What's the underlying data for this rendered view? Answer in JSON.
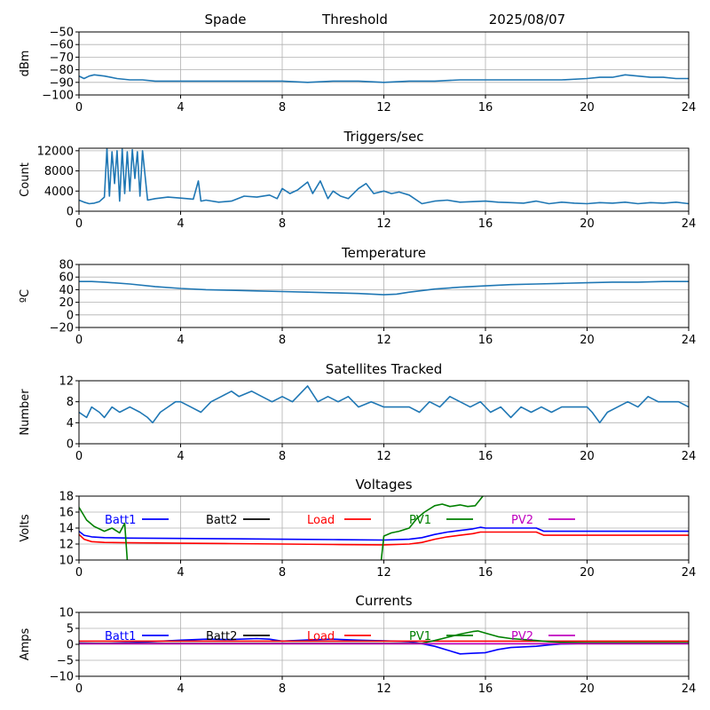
{
  "header": {
    "left": "Spade",
    "center": "Threshold",
    "right": "2025/08/07"
  },
  "chart_data": [
    {
      "id": "threshold",
      "type": "line",
      "title": "",
      "xlabel": "",
      "ylabel": "dBm",
      "xlim": [
        0,
        24
      ],
      "ylim": [
        -100,
        -50
      ],
      "xticks": [
        0,
        4,
        8,
        12,
        16,
        20,
        24
      ],
      "yticks": [
        -100,
        -90,
        -80,
        -70,
        -60,
        -50
      ],
      "grid": true,
      "series": [
        {
          "color": "#1f77b4",
          "x": [
            0,
            0.2,
            0.4,
            0.6,
            1.0,
            1.5,
            2.0,
            2.5,
            3.0,
            4.0,
            5.0,
            6.0,
            7.0,
            8.0,
            9.0,
            10.0,
            11.0,
            12.0,
            13.0,
            14.0,
            15.0,
            16.0,
            17.0,
            18.0,
            19.0,
            20.0,
            20.5,
            21.0,
            21.5,
            22.0,
            22.5,
            23.0,
            23.5,
            24.0
          ],
          "y": [
            -85,
            -87,
            -85,
            -84,
            -85,
            -87,
            -88,
            -88,
            -89,
            -89,
            -89,
            -89,
            -89,
            -89,
            -90,
            -89,
            -89,
            -90,
            -89,
            -89,
            -88,
            -88,
            -88,
            -88,
            -88,
            -87,
            -86,
            -86,
            -84,
            -85,
            -86,
            -86,
            -87,
            -87
          ]
        }
      ]
    },
    {
      "id": "triggers",
      "type": "line",
      "title": "Triggers/sec",
      "xlabel": "",
      "ylabel": "Count",
      "xlim": [
        0,
        24
      ],
      "ylim": [
        0,
        12500
      ],
      "xticks": [
        0,
        4,
        8,
        12,
        16,
        20,
        24
      ],
      "yticks": [
        0,
        4000,
        8000,
        12000
      ],
      "grid": true,
      "series": [
        {
          "color": "#1f77b4",
          "x": [
            0,
            0.2,
            0.4,
            0.6,
            0.8,
            1.0,
            1.1,
            1.2,
            1.3,
            1.4,
            1.5,
            1.6,
            1.7,
            1.8,
            1.9,
            2.0,
            2.1,
            2.2,
            2.3,
            2.4,
            2.5,
            2.7,
            3.0,
            3.5,
            4.0,
            4.5,
            4.7,
            4.8,
            5.0,
            5.5,
            6.0,
            6.5,
            7.0,
            7.5,
            7.8,
            8.0,
            8.3,
            8.6,
            9.0,
            9.2,
            9.5,
            9.8,
            10.0,
            10.3,
            10.6,
            11.0,
            11.3,
            11.6,
            12.0,
            12.3,
            12.6,
            13.0,
            13.5,
            14.0,
            14.5,
            15.0,
            15.5,
            16.0,
            16.5,
            17.0,
            17.5,
            18.0,
            18.5,
            19.0,
            19.5,
            20.0,
            20.5,
            21.0,
            21.5,
            22.0,
            22.5,
            23.0,
            23.5,
            24.0
          ],
          "y": [
            2200,
            1800,
            1500,
            1600,
            1900,
            2800,
            12400,
            3000,
            11800,
            5500,
            12000,
            2000,
            12300,
            3500,
            11800,
            4000,
            12200,
            6500,
            11800,
            3000,
            12000,
            2200,
            2500,
            2800,
            2600,
            2400,
            6000,
            2000,
            2200,
            1800,
            2000,
            3000,
            2800,
            3200,
            2500,
            4500,
            3500,
            4200,
            5800,
            3500,
            6000,
            2500,
            4000,
            3000,
            2500,
            4500,
            5500,
            3500,
            4000,
            3500,
            3800,
            3200,
            1500,
            2000,
            2200,
            1800,
            1900,
            2000,
            1800,
            1700,
            1600,
            2000,
            1500,
            1800,
            1600,
            1500,
            1700,
            1600,
            1800,
            1500,
            1700,
            1600,
            1800,
            1500
          ]
        }
      ]
    },
    {
      "id": "temperature",
      "type": "line",
      "title": "Temperature",
      "xlabel": "",
      "ylabel": "ºC",
      "xlim": [
        0,
        24
      ],
      "ylim": [
        -20,
        80
      ],
      "xticks": [
        0,
        4,
        8,
        12,
        16,
        20,
        24
      ],
      "yticks": [
        -20,
        0,
        20,
        40,
        60,
        80
      ],
      "grid": true,
      "series": [
        {
          "color": "#1f77b4",
          "x": [
            0,
            0.5,
            1,
            2,
            3,
            4,
            5,
            6,
            7,
            8,
            9,
            10,
            11,
            12,
            12.5,
            13,
            14,
            15,
            16,
            17,
            18,
            19,
            20,
            21,
            22,
            23,
            24
          ],
          "y": [
            53,
            53,
            52,
            49,
            45,
            42,
            40,
            39,
            38,
            37,
            36,
            35,
            34,
            32,
            33,
            36,
            41,
            44,
            46,
            48,
            49,
            50,
            51,
            52,
            52,
            53,
            53
          ]
        }
      ]
    },
    {
      "id": "satellites",
      "type": "line",
      "title": "Satellites Tracked",
      "xlabel": "",
      "ylabel": "Number",
      "xlim": [
        0,
        24
      ],
      "ylim": [
        0,
        12
      ],
      "xticks": [
        0,
        4,
        8,
        12,
        16,
        20,
        24
      ],
      "yticks": [
        0,
        4,
        8,
        12
      ],
      "grid": true,
      "series": [
        {
          "color": "#1f77b4",
          "x": [
            0,
            0.3,
            0.5,
            0.8,
            1.0,
            1.3,
            1.6,
            2.0,
            2.4,
            2.7,
            2.9,
            3.2,
            3.5,
            3.8,
            4.0,
            4.4,
            4.8,
            5.2,
            5.6,
            6.0,
            6.3,
            6.8,
            7.2,
            7.6,
            8.0,
            8.4,
            8.8,
            9.0,
            9.4,
            9.8,
            10.2,
            10.6,
            11.0,
            11.5,
            12.0,
            12.5,
            13.0,
            13.4,
            13.8,
            14.2,
            14.6,
            15.0,
            15.4,
            15.8,
            16.2,
            16.6,
            17.0,
            17.4,
            17.8,
            18.2,
            18.6,
            19.0,
            19.5,
            20.0,
            20.2,
            20.5,
            20.8,
            21.2,
            21.6,
            22.0,
            22.4,
            22.8,
            23.2,
            23.6,
            24.0
          ],
          "y": [
            6,
            5,
            7,
            6,
            5,
            7,
            6,
            7,
            6,
            5,
            4,
            6,
            7,
            8,
            8,
            7,
            6,
            8,
            9,
            10,
            9,
            10,
            9,
            8,
            9,
            8,
            10,
            11,
            8,
            9,
            8,
            9,
            7,
            8,
            7,
            7,
            7,
            6,
            8,
            7,
            9,
            8,
            7,
            8,
            6,
            7,
            5,
            7,
            6,
            7,
            6,
            7,
            7,
            7,
            6,
            4,
            6,
            7,
            8,
            7,
            9,
            8,
            8,
            8,
            7
          ]
        }
      ]
    },
    {
      "id": "voltages",
      "type": "line",
      "title": "Voltages",
      "xlabel": "",
      "ylabel": "Volts",
      "xlim": [
        0,
        24
      ],
      "ylim": [
        10,
        18
      ],
      "xticks": [
        0,
        4,
        8,
        12,
        16,
        20,
        24
      ],
      "yticks": [
        10,
        12,
        14,
        16,
        18
      ],
      "grid": true,
      "legend": [
        {
          "label": "Batt1",
          "color": "#0000ff"
        },
        {
          "label": "Batt2",
          "color": "#000000"
        },
        {
          "label": "Load",
          "color": "#ff0000"
        },
        {
          "label": "PV1",
          "color": "#008000"
        },
        {
          "label": "PV2",
          "color": "#bf00bf"
        }
      ],
      "series": [
        {
          "name": "Batt1",
          "color": "#0000ff",
          "x": [
            0,
            0.2,
            0.5,
            1,
            2,
            4,
            6,
            8,
            10,
            12,
            13,
            13.5,
            14,
            14.5,
            15,
            15.5,
            15.8,
            16,
            17,
            18,
            18.3,
            20,
            22,
            24
          ],
          "y": [
            13.6,
            13.1,
            12.9,
            12.8,
            12.75,
            12.7,
            12.65,
            12.6,
            12.55,
            12.5,
            12.6,
            12.8,
            13.2,
            13.5,
            13.7,
            13.9,
            14.1,
            14.0,
            14.0,
            14.0,
            13.6,
            13.6,
            13.6,
            13.6
          ]
        },
        {
          "name": "Load",
          "color": "#ff0000",
          "x": [
            0,
            0.2,
            0.5,
            1,
            2,
            4,
            6,
            8,
            10,
            12,
            13,
            13.5,
            14,
            14.5,
            15,
            15.5,
            15.8,
            16,
            17,
            18,
            18.3,
            20,
            22,
            24
          ],
          "y": [
            13.2,
            12.6,
            12.3,
            12.2,
            12.15,
            12.1,
            12.05,
            12.0,
            11.95,
            11.9,
            12.0,
            12.2,
            12.6,
            12.9,
            13.1,
            13.3,
            13.5,
            13.5,
            13.5,
            13.5,
            13.1,
            13.1,
            13.1,
            13.1
          ]
        },
        {
          "name": "PV1",
          "color": "#008000",
          "x": [
            0,
            0.3,
            0.6,
            1.0,
            1.3,
            1.6,
            1.8,
            1.9
          ],
          "y": [
            16.6,
            15.0,
            14.2,
            13.6,
            14.0,
            13.4,
            14.6,
            10.0
          ]
        },
        {
          "name": "PV1",
          "color": "#008000",
          "x": [
            11.9,
            12.0,
            12.3,
            12.6,
            13.0,
            13.3,
            13.6,
            14.0,
            14.3,
            14.6,
            15.0,
            15.3,
            15.6,
            15.9
          ],
          "y": [
            10.0,
            13.0,
            13.4,
            13.6,
            14.0,
            15.2,
            16.0,
            16.8,
            17.0,
            16.7,
            16.9,
            16.7,
            16.8,
            18.0
          ]
        }
      ]
    },
    {
      "id": "currents",
      "type": "line",
      "title": "Currents",
      "xlabel": "",
      "ylabel": "Amps",
      "xlim": [
        0,
        24
      ],
      "ylim": [
        -10,
        10
      ],
      "xticks": [
        0,
        4,
        8,
        12,
        16,
        20,
        24
      ],
      "yticks": [
        -10,
        -5,
        0,
        5,
        10
      ],
      "grid": true,
      "legend": [
        {
          "label": "Batt1",
          "color": "#0000ff"
        },
        {
          "label": "Batt2",
          "color": "#000000"
        },
        {
          "label": "Load",
          "color": "#ff0000"
        },
        {
          "label": "PV1",
          "color": "#008000"
        },
        {
          "label": "PV2",
          "color": "#bf00bf"
        }
      ],
      "series": [
        {
          "name": "Batt1",
          "color": "#0000ff",
          "x": [
            0,
            1,
            2,
            3,
            4,
            5,
            6,
            7,
            7.5,
            8,
            9,
            10,
            11,
            12,
            13,
            13.5,
            14,
            14.5,
            15,
            15.5,
            16,
            16.5,
            17,
            18,
            18.5,
            19,
            20,
            22,
            24
          ],
          "y": [
            0.4,
            0.3,
            0.5,
            0.9,
            1.3,
            1.6,
            1.5,
            1.8,
            1.6,
            1.0,
            1.4,
            1.6,
            1.3,
            1.1,
            0.8,
            0.2,
            -0.6,
            -1.8,
            -3.0,
            -2.8,
            -2.6,
            -1.6,
            -1.0,
            -0.6,
            -0.2,
            0.1,
            0.3,
            0.4,
            0.4
          ]
        },
        {
          "name": "Load",
          "color": "#ff0000",
          "x": [
            0,
            24
          ],
          "y": [
            1.0,
            1.0
          ]
        },
        {
          "name": "PV1",
          "color": "#008000",
          "x": [
            0,
            13.5,
            14,
            14.5,
            15,
            15.5,
            15.7,
            16,
            16.5,
            17,
            18,
            18.5,
            19,
            20,
            24
          ],
          "y": [
            0.3,
            0.3,
            1.2,
            2.2,
            3.2,
            4.0,
            4.2,
            3.5,
            2.4,
            1.8,
            1.2,
            0.8,
            0.6,
            0.5,
            0.5
          ]
        },
        {
          "name": "PV2",
          "color": "#bf00bf",
          "x": [
            0,
            24
          ],
          "y": [
            0.2,
            0.2
          ]
        }
      ]
    }
  ]
}
